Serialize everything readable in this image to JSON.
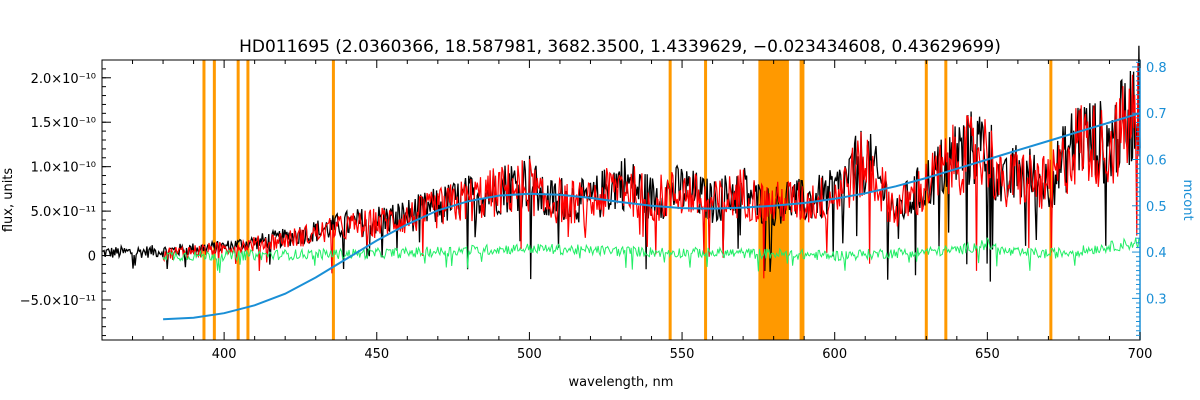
{
  "chart_data": {
    "type": "line",
    "title": "HD011695   (2.0360366, 18.587981, 3682.3500, 1.4339629, −0.023434608, 0.43629699)",
    "xlabel": "wavelength, nm",
    "ylabel": "flux, units",
    "y2label": "mcont",
    "xlim": [
      360,
      700
    ],
    "ylim": [
      -9.5e-11,
      2.2e-10
    ],
    "y2lim": [
      0.21,
      0.815
    ],
    "x_ticks": [
      400,
      450,
      500,
      550,
      600,
      650,
      700
    ],
    "y_ticks": [
      {
        "v": -5e-11,
        "label": "−5.0×10⁻¹¹"
      },
      {
        "v": 0,
        "label": "0"
      },
      {
        "v": 5e-11,
        "label": "5.0×10⁻¹¹"
      },
      {
        "v": 1e-10,
        "label": "1.0×10⁻¹⁰"
      },
      {
        "v": 1.5e-10,
        "label": "1.5×10⁻¹⁰"
      },
      {
        "v": 2e-10,
        "label": "2.0×10⁻¹⁰"
      }
    ],
    "y2_ticks": [
      0.3,
      0.4,
      0.5,
      0.6,
      0.7,
      0.8
    ],
    "masked_lines_nm": [
      393.4,
      396.8,
      404.6,
      407.8,
      435.8,
      546.1,
      557.7,
      588.99,
      589.59,
      630.0,
      636.4,
      670.8
    ],
    "masked_band_nm": [
      575,
      585
    ],
    "series": [
      {
        "key": "observed",
        "color": "#000000",
        "axis": "left",
        "x": [
          360,
          380,
          400,
          420,
          440,
          460,
          475,
          490,
          500,
          505,
          510,
          520,
          530,
          540,
          550,
          560,
          570,
          575,
          580,
          585,
          590,
          600,
          610,
          615,
          620,
          630,
          640,
          650,
          655,
          660,
          670,
          680,
          690,
          700
        ],
        "y": [
          3e-12,
          5e-12,
          1e-11,
          2e-11,
          3.5e-11,
          4.5e-11,
          6e-11,
          7.5e-11,
          8.5e-11,
          6e-11,
          6.5e-11,
          6e-11,
          8.5e-11,
          6.5e-11,
          7.5e-11,
          6e-11,
          7.5e-11,
          6e-11,
          5.5e-11,
          6.5e-11,
          6e-11,
          7e-11,
          1.1e-10,
          8e-11,
          5e-11,
          8e-11,
          1.15e-10,
          1.25e-10,
          7.5e-11,
          9.5e-11,
          8e-11,
          1.35e-10,
          1.25e-10,
          1.75e-10
        ]
      },
      {
        "key": "model",
        "color": "#ff0000",
        "axis": "left",
        "x": [
          380,
          400,
          420,
          440,
          460,
          475,
          490,
          500,
          505,
          510,
          520,
          530,
          540,
          550,
          560,
          570,
          575,
          580,
          585,
          590,
          600,
          610,
          615,
          620,
          630,
          640,
          650,
          655,
          660,
          670,
          680,
          690,
          700
        ],
        "y": [
          2e-12,
          8e-12,
          1.8e-11,
          3.2e-11,
          4.2e-11,
          5.8e-11,
          7.2e-11,
          8e-11,
          5.8e-11,
          6.2e-11,
          5.8e-11,
          8e-11,
          6.2e-11,
          7.2e-11,
          5.8e-11,
          7.2e-11,
          6e-11,
          5.8e-11,
          6.2e-11,
          5.8e-11,
          6.8e-11,
          1.05e-10,
          7.8e-11,
          5e-11,
          7.8e-11,
          1.1e-10,
          1.2e-10,
          7.5e-11,
          9e-11,
          7.8e-11,
          1.3e-10,
          1.2e-10,
          1.65e-10
        ]
      },
      {
        "key": "residual",
        "color": "#22ee66",
        "axis": "left",
        "x": [
          380,
          400,
          420,
          440,
          460,
          480,
          500,
          520,
          540,
          560,
          580,
          600,
          620,
          640,
          650,
          655,
          660,
          670,
          680,
          690,
          700
        ],
        "y": [
          0,
          0,
          1e-12,
          2e-12,
          3e-12,
          6e-12,
          8e-12,
          6e-12,
          4e-12,
          3e-12,
          2e-12,
          0,
          3e-12,
          6e-12,
          1.3e-11,
          5e-12,
          3e-12,
          2e-12,
          5e-12,
          1e-11,
          1.5e-11
        ]
      },
      {
        "key": "mcont",
        "color": "#1a8fd6",
        "axis": "right",
        "x": [
          380,
          390,
          400,
          410,
          420,
          430,
          440,
          450,
          460,
          470,
          480,
          490,
          500,
          510,
          520,
          530,
          540,
          550,
          560,
          570,
          580,
          590,
          600,
          610,
          620,
          630,
          640,
          650,
          660,
          670,
          680,
          690,
          700
        ],
        "y": [
          0.255,
          0.258,
          0.268,
          0.285,
          0.31,
          0.345,
          0.385,
          0.425,
          0.46,
          0.49,
          0.51,
          0.522,
          0.526,
          0.524,
          0.517,
          0.508,
          0.5,
          0.495,
          0.494,
          0.496,
          0.5,
          0.506,
          0.515,
          0.527,
          0.542,
          0.56,
          0.58,
          0.6,
          0.62,
          0.64,
          0.66,
          0.68,
          0.7
        ]
      }
    ]
  }
}
